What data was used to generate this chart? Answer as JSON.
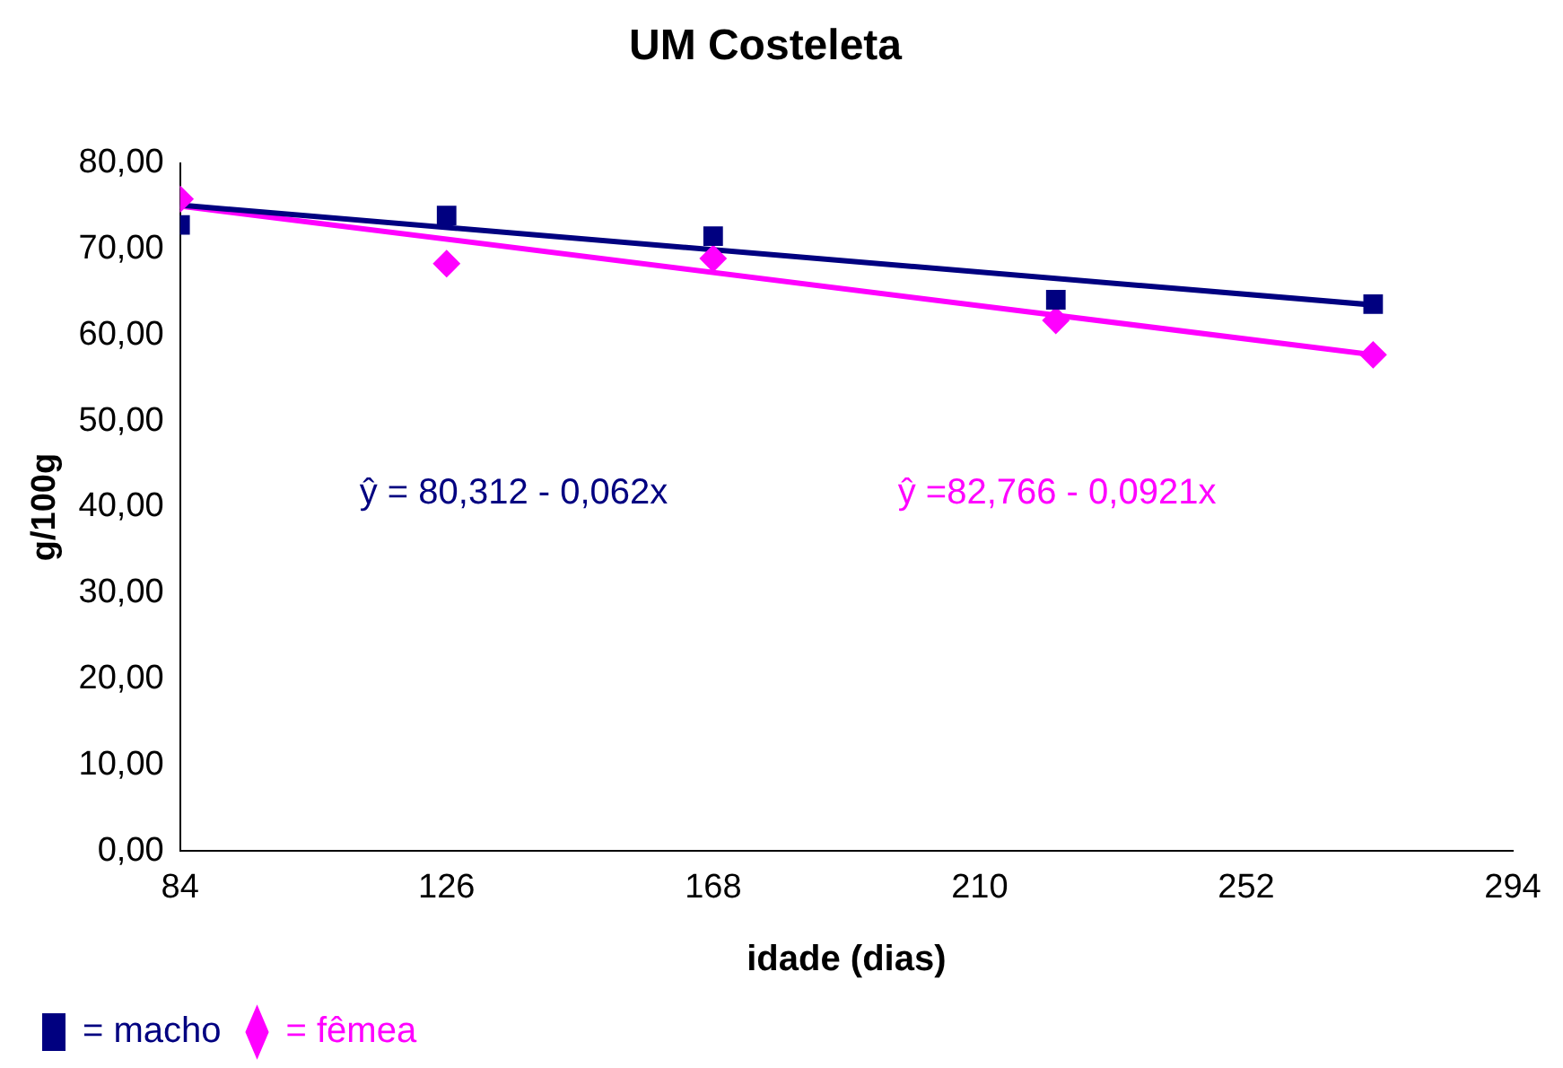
{
  "chart_data": {
    "type": "scatter",
    "title": "UM Costeleta",
    "xlabel": "idade (dias)",
    "ylabel": "g/100g",
    "series": [
      {
        "name": "= macho",
        "color": "#000080",
        "marker": "square",
        "x": [
          84,
          126,
          168,
          222,
          272
        ],
        "values": [
          72.8,
          73.9,
          71.5,
          64.1,
          63.6
        ]
      },
      {
        "name": "= fêmea",
        "color": "#ff00ff",
        "marker": "diamond",
        "x": [
          84,
          126,
          168,
          222,
          272
        ],
        "values": [
          75.8,
          68.3,
          68.9,
          61.7,
          57.7
        ]
      },
      {
        "type": "line",
        "color": "#000080",
        "marker": "none",
        "x": [
          84,
          272
        ],
        "values": [
          75.1,
          63.5
        ]
      },
      {
        "type": "line",
        "color": "#ff00ff",
        "marker": "none",
        "x": [
          84,
          272
        ],
        "values": [
          75.0,
          57.7
        ]
      }
    ],
    "annotations": [
      "ŷ = 80,312 - 0,062x",
      "ŷ =82,766 - 0,0921x"
    ],
    "xlim": [
      84,
      294
    ],
    "xticks": [
      84,
      126,
      168,
      210,
      252,
      294
    ],
    "ylim": [
      0,
      80
    ],
    "yticks": [
      {
        "value": 0,
        "label": "0,00"
      },
      {
        "value": 10,
        "label": "10,00"
      },
      {
        "value": 20,
        "label": "20,00"
      },
      {
        "value": 30,
        "label": "30,00"
      },
      {
        "value": 40,
        "label": "40,00"
      },
      {
        "value": 50,
        "label": "50,00"
      },
      {
        "value": 60,
        "label": "60,00"
      },
      {
        "value": 70,
        "label": "70,00"
      },
      {
        "value": 80,
        "label": "80,00"
      }
    ],
    "grid": false,
    "legend": "bottom left"
  }
}
